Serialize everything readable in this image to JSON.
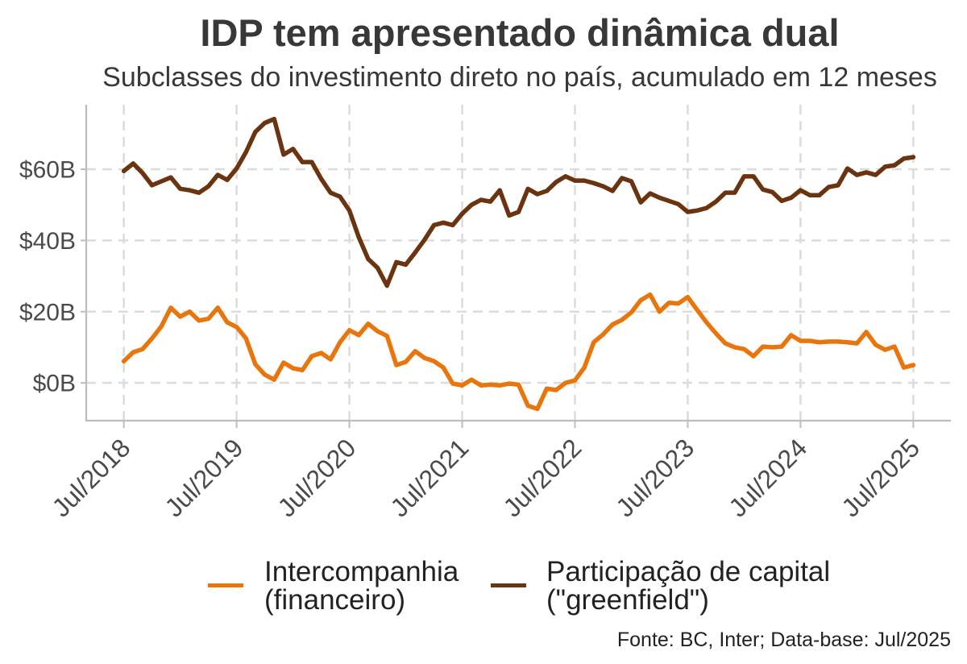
{
  "colors": {
    "text": "#383838",
    "axis_text": "#4a4a4a",
    "grid": "#dcdcdc",
    "axis": "#bdbdbd"
  },
  "chart_data": {
    "type": "line",
    "title": "IDP tem apresentado dinâmica dual",
    "subtitle": "Subclasses do investimento direto no país, acumulado em 12 meses",
    "caption": "Fonte: BC, Inter; Data-base: Jul/2025",
    "legend": "bottom",
    "grid": true,
    "xlim": [
      "2018-03",
      "2025-11"
    ],
    "ylim": [
      -10.6,
      78.1
    ],
    "x_ticks": [
      {
        "value": "2018-07",
        "label": "Jul/2018"
      },
      {
        "value": "2019-07",
        "label": "Jul/2019"
      },
      {
        "value": "2020-07",
        "label": "Jul/2020"
      },
      {
        "value": "2021-07",
        "label": "Jul/2021"
      },
      {
        "value": "2022-07",
        "label": "Jul/2022"
      },
      {
        "value": "2023-07",
        "label": "Jul/2023"
      },
      {
        "value": "2024-07",
        "label": "Jul/2024"
      },
      {
        "value": "2025-07",
        "label": "Jul/2025"
      }
    ],
    "y_ticks": [
      {
        "value": 0,
        "label": "$0B"
      },
      {
        "value": 20,
        "label": "$20B"
      },
      {
        "value": 40,
        "label": "$40B"
      },
      {
        "value": 60,
        "label": "$60B"
      }
    ],
    "x": [
      "2018-07",
      "2018-08",
      "2018-09",
      "2018-10",
      "2018-11",
      "2018-12",
      "2019-01",
      "2019-02",
      "2019-03",
      "2019-04",
      "2019-05",
      "2019-06",
      "2019-07",
      "2019-08",
      "2019-09",
      "2019-10",
      "2019-11",
      "2019-12",
      "2020-01",
      "2020-02",
      "2020-03",
      "2020-04",
      "2020-05",
      "2020-06",
      "2020-07",
      "2020-08",
      "2020-09",
      "2020-10",
      "2020-11",
      "2020-12",
      "2021-01",
      "2021-02",
      "2021-03",
      "2021-04",
      "2021-05",
      "2021-06",
      "2021-07",
      "2021-08",
      "2021-09",
      "2021-10",
      "2021-11",
      "2021-12",
      "2022-01",
      "2022-02",
      "2022-03",
      "2022-04",
      "2022-05",
      "2022-06",
      "2022-07",
      "2022-08",
      "2022-09",
      "2022-10",
      "2022-11",
      "2022-12",
      "2023-01",
      "2023-02",
      "2023-03",
      "2023-04",
      "2023-05",
      "2023-06",
      "2023-07",
      "2023-08",
      "2023-09",
      "2023-10",
      "2023-11",
      "2023-12",
      "2024-01",
      "2024-02",
      "2024-03",
      "2024-04",
      "2024-05",
      "2024-06",
      "2024-07",
      "2024-08",
      "2024-09",
      "2024-10",
      "2024-11",
      "2024-12",
      "2025-01",
      "2025-02",
      "2025-03",
      "2025-04",
      "2025-05",
      "2025-06",
      "2025-07"
    ],
    "series": [
      {
        "name": "Intercompanhia (financeiro)",
        "color": "#E8760C",
        "values": [
          6.1,
          8.6,
          9.5,
          12.5,
          15.9,
          21.1,
          18.6,
          20.0,
          17.5,
          18.0,
          21.1,
          17.0,
          15.7,
          12.5,
          5.2,
          2.3,
          0.9,
          5.7,
          4.1,
          3.6,
          7.5,
          8.4,
          6.6,
          11.4,
          14.8,
          13.4,
          16.6,
          14.5,
          13.2,
          5.0,
          5.9,
          8.9,
          7.0,
          6.1,
          4.3,
          -0.2,
          -0.7,
          0.9,
          -0.7,
          -0.5,
          -0.7,
          -0.2,
          -0.5,
          -6.4,
          -7.3,
          -1.6,
          -2.0,
          0.0,
          0.7,
          4.3,
          11.4,
          13.6,
          16.4,
          17.7,
          19.8,
          23.2,
          24.8,
          20.0,
          22.5,
          22.3,
          24.1,
          20.5,
          17.0,
          13.9,
          11.1,
          10.0,
          9.5,
          7.5,
          10.2,
          10.0,
          10.2,
          13.4,
          11.8,
          11.8,
          11.4,
          11.6,
          11.6,
          11.4,
          11.1,
          14.3,
          10.7,
          9.3,
          10.2,
          4.3,
          5.0
        ]
      },
      {
        "name": "Participação de capital (\"greenfield\")",
        "color": "#6B3411",
        "values": [
          59.5,
          61.6,
          58.9,
          55.5,
          56.6,
          57.7,
          54.5,
          54.1,
          53.4,
          55.2,
          58.4,
          57.0,
          60.2,
          64.8,
          70.5,
          73.0,
          74.1,
          64.1,
          65.7,
          62.0,
          62.0,
          57.3,
          53.4,
          52.3,
          48.4,
          40.9,
          34.8,
          32.3,
          27.3,
          33.9,
          33.2,
          36.6,
          40.2,
          44.3,
          45.0,
          44.3,
          47.5,
          50.0,
          51.4,
          50.9,
          54.1,
          47.0,
          48.0,
          54.5,
          53.0,
          53.9,
          56.4,
          58.0,
          56.8,
          56.8,
          56.1,
          55.2,
          53.9,
          57.5,
          56.6,
          50.7,
          53.2,
          52.0,
          51.1,
          50.2,
          48.0,
          48.4,
          49.1,
          50.9,
          53.4,
          53.4,
          58.0,
          58.0,
          54.3,
          53.6,
          51.1,
          52.0,
          54.1,
          52.7,
          52.7,
          55.0,
          55.5,
          60.2,
          58.4,
          59.1,
          58.4,
          60.7,
          61.1,
          63.0,
          63.4
        ]
      }
    ]
  }
}
